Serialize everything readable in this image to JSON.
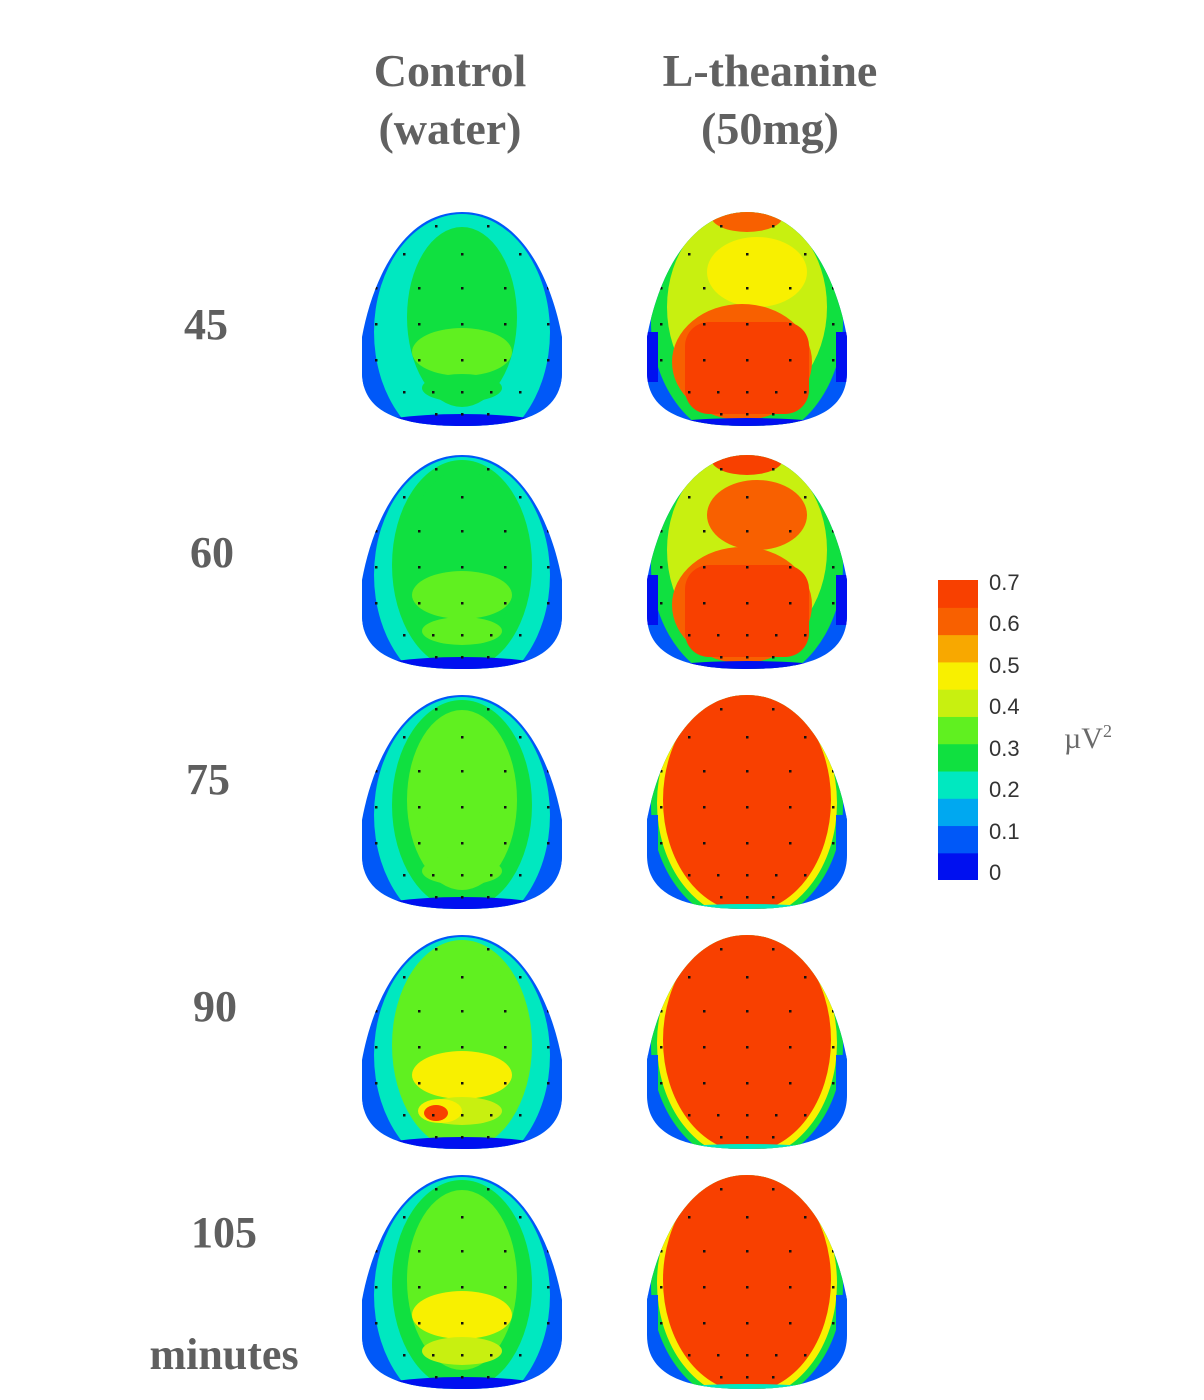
{
  "chart_data": {
    "type": "heatmap",
    "columns": [
      {
        "id": "control",
        "line1": "Control",
        "line2": "(water)"
      },
      {
        "id": "ltheanine",
        "line1": "L-theanine",
        "line2": "(50mg)"
      }
    ],
    "time_labels": [
      "45",
      "60",
      "75",
      "90",
      "105"
    ],
    "time_unit": "minutes",
    "colorbar": {
      "unit_base": "µV",
      "unit_exp": "2",
      "min": 0,
      "max": 0.7,
      "ticks": [
        "0.7",
        "0.6",
        "0.5",
        "0.4",
        "0.3",
        "0.2",
        "0.1",
        "0"
      ],
      "colors": [
        "#0010f0",
        "#0058f8",
        "#00a8f0",
        "#00e8c0",
        "#10e040",
        "#60f020",
        "#c8f010",
        "#f8f000",
        "#f8a800",
        "#f86000",
        "#f84000"
      ]
    },
    "maps": [
      {
        "time": "45",
        "control": {
          "mean": 0.28,
          "occipital": 0.33,
          "hot_spot": 0.0
        },
        "ltheanine": {
          "frontal": 0.5,
          "posterior": 0.7,
          "extent": 0.35
        }
      },
      {
        "time": "60",
        "control": {
          "mean": 0.3,
          "occipital": 0.38,
          "hot_spot": 0.0
        },
        "ltheanine": {
          "frontal": 0.62,
          "posterior": 0.7,
          "extent": 0.45
        }
      },
      {
        "time": "75",
        "control": {
          "mean": 0.32,
          "occipital": 0.38,
          "hot_spot": 0.0
        },
        "ltheanine": {
          "frontal": 0.7,
          "posterior": 0.7,
          "extent": 1.0
        }
      },
      {
        "time": "90",
        "control": {
          "mean": 0.35,
          "occipital": 0.45,
          "hot_spot": 0.68
        },
        "ltheanine": {
          "frontal": 0.7,
          "posterior": 0.7,
          "extent": 1.0
        }
      },
      {
        "time": "105",
        "control": {
          "mean": 0.33,
          "occipital": 0.45,
          "hot_spot": 0.0
        },
        "ltheanine": {
          "frontal": 0.7,
          "posterior": 0.7,
          "extent": 1.0
        }
      }
    ]
  }
}
